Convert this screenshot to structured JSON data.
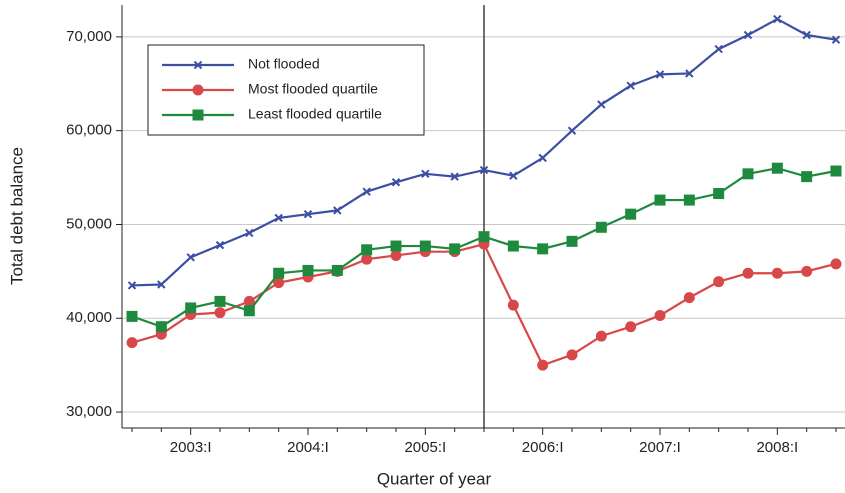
{
  "chart_data": {
    "type": "line",
    "x_label": "Quarter of year",
    "y_label": "Total debt balance",
    "categories": [
      null,
      null,
      "2003:I",
      null,
      null,
      null,
      "2004:I",
      null,
      null,
      null,
      "2005:I",
      null,
      null,
      null,
      "2006:I",
      null,
      null,
      null,
      "2007:I",
      null,
      null,
      null,
      "2008:I",
      null,
      null
    ],
    "vline": 12,
    "series": [
      {
        "name": "Not flooded",
        "color": "#3b4fa3",
        "marker": "x",
        "values": [
          43500,
          43600,
          46500,
          47800,
          49100,
          50700,
          51100,
          51500,
          53500,
          54500,
          55400,
          55100,
          55800,
          55200,
          57100,
          60000,
          62800,
          64800,
          66000,
          66100,
          68700,
          70200,
          71900,
          70200,
          69700
        ]
      },
      {
        "name": "Most flooded quartile",
        "color": "#d94848",
        "marker": "circle",
        "values": [
          37400,
          38300,
          40400,
          40600,
          41800,
          43800,
          44400,
          45000,
          46300,
          46700,
          47100,
          47100,
          47900,
          41400,
          35000,
          36100,
          38100,
          39100,
          40300,
          42200,
          43900,
          44800,
          44800,
          45000,
          45800
        ]
      },
      {
        "name": "Least flooded quartile",
        "color": "#1e8a3e",
        "marker": "square",
        "values": [
          40200,
          39100,
          41100,
          41800,
          40800,
          44800,
          45100,
          45100,
          47300,
          47700,
          47700,
          47400,
          48700,
          47700,
          47400,
          48200,
          49700,
          51100,
          52600,
          52600,
          53300,
          55400,
          56000,
          55100,
          55700
        ]
      }
    ],
    "ylim": [
      28300,
      73400
    ],
    "yticks": [
      {
        "value": 30000,
        "label": "30,000"
      },
      {
        "value": 40000,
        "label": "40,000"
      },
      {
        "value": 50000,
        "label": "50,000"
      },
      {
        "value": 60000,
        "label": "60,000"
      },
      {
        "value": 70000,
        "label": "70,000"
      }
    ],
    "grid": true
  }
}
